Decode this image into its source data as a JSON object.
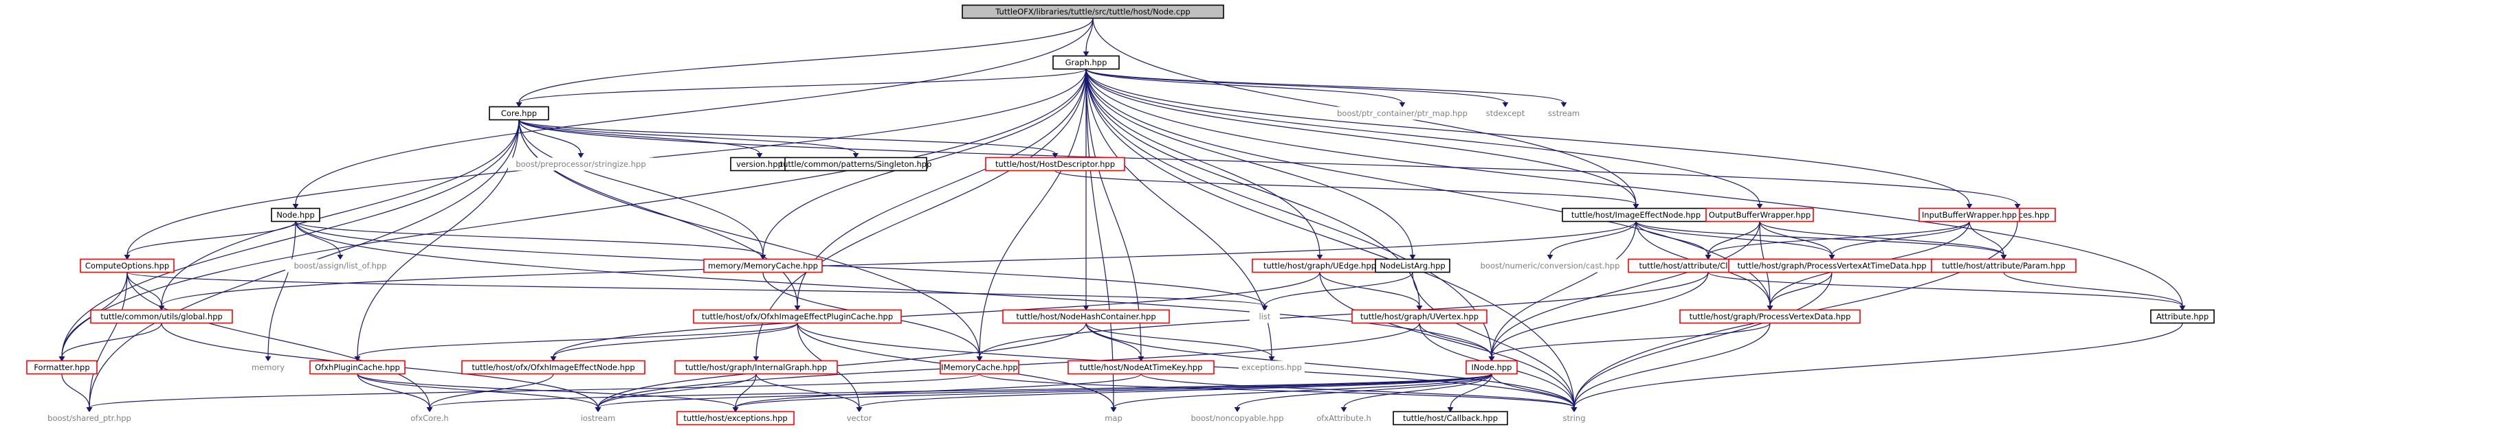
{
  "colors": {
    "edge": "#191970",
    "root_fill": "#bfbfbf",
    "root_text": "#000000",
    "black_border": "#000000",
    "red_border": "#ff0000",
    "gray_text": "#808080",
    "link_text": "#000000"
  },
  "nodes": [
    {
      "id": "root",
      "label": "TuttleOFX/libraries/tuttle/src/tuttle/host/Node.cpp",
      "kind": "root"
    },
    {
      "id": "graph",
      "label": "Graph.hpp",
      "kind": "black"
    },
    {
      "id": "core",
      "label": "Core.hpp",
      "kind": "black"
    },
    {
      "id": "ptrmap",
      "label": "boost/ptr_container/ptr_map.hpp",
      "kind": "gray"
    },
    {
      "id": "stdexcept",
      "label": "stdexcept",
      "kind": "gray"
    },
    {
      "id": "sstream",
      "label": "sstream",
      "kind": "gray"
    },
    {
      "id": "stringize",
      "label": "boost/preprocessor/stringize.hpp",
      "kind": "gray"
    },
    {
      "id": "version",
      "label": "version.hpp",
      "kind": "black"
    },
    {
      "id": "singleton",
      "label": "tuttle/common/patterns/Singleton.hpp",
      "kind": "black"
    },
    {
      "id": "hostdesc",
      "label": "tuttle/host/HostDescriptor.hpp",
      "kind": "red"
    },
    {
      "id": "preferences",
      "label": "Preferences.hpp",
      "kind": "red"
    },
    {
      "id": "imgeffnode",
      "label": "tuttle/host/ImageEffectNode.hpp",
      "kind": "black"
    },
    {
      "id": "outbuf",
      "label": "OutputBufferWrapper.hpp",
      "kind": "red"
    },
    {
      "id": "inbuf",
      "label": "InputBufferWrapper.hpp",
      "kind": "red"
    },
    {
      "id": "nodehpp",
      "label": "Node.hpp",
      "kind": "black"
    },
    {
      "id": "listof",
      "label": "boost/assign/list_of.hpp",
      "kind": "gray"
    },
    {
      "id": "memcache",
      "label": "memory/MemoryCache.hpp",
      "kind": "red"
    },
    {
      "id": "uedge",
      "label": "tuttle/host/graph/UEdge.hpp",
      "kind": "red"
    },
    {
      "id": "nodelistarg",
      "label": "NodeListArg.hpp",
      "kind": "black"
    },
    {
      "id": "numconv",
      "label": "boost/numeric/conversion/cast.hpp",
      "kind": "gray"
    },
    {
      "id": "clipimage",
      "label": "tuttle/host/attribute/ClipImage.hpp",
      "kind": "red"
    },
    {
      "id": "pvatd",
      "label": "tuttle/host/graph/ProcessVertexAtTimeData.hpp",
      "kind": "red"
    },
    {
      "id": "param",
      "label": "tuttle/host/attribute/Param.hpp",
      "kind": "red"
    },
    {
      "id": "computeopts",
      "label": "ComputeOptions.hpp",
      "kind": "red"
    },
    {
      "id": "list",
      "label": "list",
      "kind": "gray"
    },
    {
      "id": "uvertex",
      "label": "tuttle/host/graph/UVertex.hpp",
      "kind": "red"
    },
    {
      "id": "pvd",
      "label": "tuttle/host/graph/ProcessVertexData.hpp",
      "kind": "red"
    },
    {
      "id": "attribute",
      "label": "Attribute.hpp",
      "kind": "black"
    },
    {
      "id": "global",
      "label": "tuttle/common/utils/global.hpp",
      "kind": "red"
    },
    {
      "id": "ofxiepc",
      "label": "tuttle/host/ofx/OfxhImageEffectPluginCache.hpp",
      "kind": "red"
    },
    {
      "id": "nhc",
      "label": "tuttle/host/NodeHashContainer.hpp",
      "kind": "red"
    },
    {
      "id": "formatter",
      "label": "Formatter.hpp",
      "kind": "red"
    },
    {
      "id": "memory",
      "label": "memory",
      "kind": "gray"
    },
    {
      "id": "ofxhpc",
      "label": "OfxhPluginCache.hpp",
      "kind": "red"
    },
    {
      "id": "ofxhien",
      "label": "tuttle/host/ofx/OfxhImageEffectNode.hpp",
      "kind": "red"
    },
    {
      "id": "internalgraph",
      "label": "tuttle/host/graph/InternalGraph.hpp",
      "kind": "red"
    },
    {
      "id": "imemcache",
      "label": "IMemoryCache.hpp",
      "kind": "red"
    },
    {
      "id": "nodeattimekey",
      "label": "tuttle/host/NodeAtTimeKey.hpp",
      "kind": "red"
    },
    {
      "id": "exceptions",
      "label": "exceptions.hpp",
      "kind": "gray"
    },
    {
      "id": "inode",
      "label": "INode.hpp",
      "kind": "red"
    },
    {
      "id": "sharedptr",
      "label": "boost/shared_ptr.hpp",
      "kind": "gray"
    },
    {
      "id": "ofxcore",
      "label": "ofxCore.h",
      "kind": "gray"
    },
    {
      "id": "iostream",
      "label": "iostream",
      "kind": "gray"
    },
    {
      "id": "tuttleexc",
      "label": "tuttle/host/exceptions.hpp",
      "kind": "red"
    },
    {
      "id": "vector",
      "label": "vector",
      "kind": "gray"
    },
    {
      "id": "map",
      "label": "map",
      "kind": "gray"
    },
    {
      "id": "noncopyable",
      "label": "boost/noncopyable.hpp",
      "kind": "gray"
    },
    {
      "id": "ofxattr",
      "label": "ofxAttribute.h",
      "kind": "gray"
    },
    {
      "id": "callback",
      "label": "tuttle/host/Callback.hpp",
      "kind": "black"
    },
    {
      "id": "string",
      "label": "string",
      "kind": "gray"
    }
  ],
  "edges": [
    [
      "root",
      "graph"
    ],
    [
      "root",
      "core"
    ],
    [
      "root",
      "nodehpp"
    ],
    [
      "root",
      "imgeffnode"
    ],
    [
      "graph",
      "core"
    ],
    [
      "graph",
      "ptrmap"
    ],
    [
      "graph",
      "stdexcept"
    ],
    [
      "graph",
      "sstream"
    ],
    [
      "graph",
      "imgeffnode"
    ],
    [
      "graph",
      "nodelistarg"
    ],
    [
      "graph",
      "uedge"
    ],
    [
      "graph",
      "uvertex"
    ],
    [
      "graph",
      "internalgraph"
    ],
    [
      "graph",
      "computeopts"
    ],
    [
      "graph",
      "inode"
    ],
    [
      "graph",
      "memcache"
    ],
    [
      "graph",
      "string"
    ],
    [
      "graph",
      "map"
    ],
    [
      "graph",
      "attribute"
    ],
    [
      "graph",
      "exceptions"
    ],
    [
      "graph",
      "outbuf"
    ],
    [
      "graph",
      "inbuf"
    ],
    [
      "graph",
      "nhc"
    ],
    [
      "graph",
      "nodeattimekey"
    ],
    [
      "graph",
      "imemcache"
    ],
    [
      "graph",
      "pvd"
    ],
    [
      "graph",
      "ofxiepc"
    ],
    [
      "graph",
      "formatter"
    ],
    [
      "core",
      "stringize"
    ],
    [
      "core",
      "version"
    ],
    [
      "core",
      "singleton"
    ],
    [
      "core",
      "hostdesc"
    ],
    [
      "core",
      "preferences"
    ],
    [
      "core",
      "ofxiepc"
    ],
    [
      "core",
      "global"
    ],
    [
      "core",
      "ofxhpc"
    ],
    [
      "core",
      "memcache"
    ],
    [
      "core",
      "imemcache"
    ],
    [
      "core",
      "sharedptr"
    ],
    [
      "core",
      "formatter"
    ],
    [
      "hostdesc",
      "imgeffnode"
    ],
    [
      "imgeffnode",
      "numconv"
    ],
    [
      "imgeffnode",
      "clipimage"
    ],
    [
      "imgeffnode",
      "pvatd"
    ],
    [
      "imgeffnode",
      "param"
    ],
    [
      "imgeffnode",
      "global"
    ],
    [
      "imgeffnode",
      "inode"
    ],
    [
      "imgeffnode",
      "pvd"
    ],
    [
      "outbuf",
      "clipimage"
    ],
    [
      "outbuf",
      "pvatd"
    ],
    [
      "outbuf",
      "pvd"
    ],
    [
      "outbuf",
      "param"
    ],
    [
      "outbuf",
      "inode"
    ],
    [
      "inbuf",
      "clipimage"
    ],
    [
      "inbuf",
      "pvatd"
    ],
    [
      "inbuf",
      "param"
    ],
    [
      "inbuf",
      "pvd"
    ],
    [
      "preferences",
      "string"
    ],
    [
      "nodehpp",
      "listof"
    ],
    [
      "nodehpp",
      "memcache"
    ],
    [
      "nodehpp",
      "computeopts"
    ],
    [
      "nodehpp",
      "list"
    ],
    [
      "nodehpp",
      "memory"
    ],
    [
      "nodehpp",
      "inode"
    ],
    [
      "memcache",
      "imemcache"
    ],
    [
      "uedge",
      "uvertex"
    ],
    [
      "uedge",
      "ofxhien"
    ],
    [
      "uedge",
      "string"
    ],
    [
      "nodelistarg",
      "list"
    ],
    [
      "nodelistarg",
      "string"
    ],
    [
      "clipimage",
      "attribute"
    ],
    [
      "clipimage",
      "inode"
    ],
    [
      "clipimage",
      "imemcache"
    ],
    [
      "pvatd",
      "pvd"
    ],
    [
      "pvatd",
      "string"
    ],
    [
      "param",
      "attribute"
    ],
    [
      "computeopts",
      "global"
    ],
    [
      "computeopts",
      "formatter"
    ],
    [
      "computeopts",
      "sharedptr"
    ],
    [
      "computeopts",
      "list"
    ],
    [
      "computeopts",
      "ofxcore"
    ],
    [
      "uvertex",
      "inode"
    ],
    [
      "uvertex",
      "string"
    ],
    [
      "uvertex",
      "iostream"
    ],
    [
      "pvd",
      "inode"
    ],
    [
      "pvd",
      "string"
    ],
    [
      "attribute",
      "string"
    ],
    [
      "global",
      "formatter"
    ],
    [
      "global",
      "iostream"
    ],
    [
      "ofxiepc",
      "ofxhpc"
    ],
    [
      "ofxiepc",
      "ofxhien"
    ],
    [
      "ofxiepc",
      "vector"
    ],
    [
      "ofxiepc",
      "map"
    ],
    [
      "ofxiepc",
      "string"
    ],
    [
      "nhc",
      "nodeattimekey"
    ],
    [
      "nhc",
      "exceptions"
    ],
    [
      "nhc",
      "string"
    ],
    [
      "nhc",
      "iostream"
    ],
    [
      "formatter",
      "sharedptr"
    ],
    [
      "ofxhpc",
      "ofxcore"
    ],
    [
      "ofxhpc",
      "iostream"
    ],
    [
      "ofxhpc",
      "tuttleexc"
    ],
    [
      "ofxhien",
      "ofxcore"
    ],
    [
      "internalgraph",
      "iostream"
    ],
    [
      "internalgraph",
      "tuttleexc"
    ],
    [
      "internalgraph",
      "vector"
    ],
    [
      "imemcache",
      "sharedptr"
    ],
    [
      "imemcache",
      "string"
    ],
    [
      "nodeattimekey",
      "string"
    ],
    [
      "nodeattimekey",
      "tuttleexc"
    ],
    [
      "inode",
      "ofxcore"
    ],
    [
      "inode",
      "iostream"
    ],
    [
      "inode",
      "tuttleexc"
    ],
    [
      "inode",
      "vector"
    ],
    [
      "inode",
      "map"
    ],
    [
      "inode",
      "noncopyable"
    ],
    [
      "inode",
      "ofxattr"
    ],
    [
      "inode",
      "callback"
    ],
    [
      "inode",
      "string"
    ]
  ]
}
